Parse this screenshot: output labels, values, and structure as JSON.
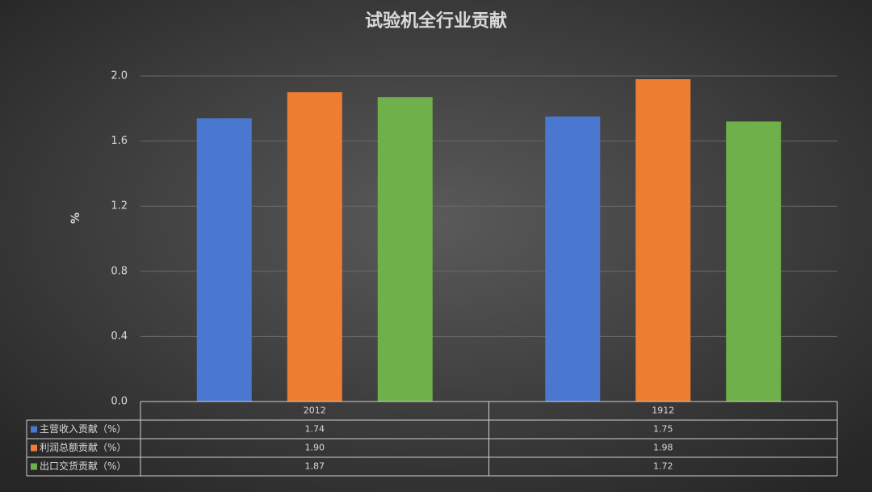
{
  "chart_data": {
    "type": "bar",
    "title": "试验机全行业贡献",
    "y_label": "%",
    "categories": [
      "2012",
      "1912"
    ],
    "series": [
      {
        "name": "主营收入贡献（%）",
        "color": "#4a78d0",
        "values": [
          1.74,
          1.75
        ]
      },
      {
        "name": "利润总额贡献（%）",
        "color": "#ed7d31",
        "values": [
          1.9,
          1.98
        ],
        "value_labels": [
          "1.90",
          "1.98"
        ]
      },
      {
        "name": "出口交货贡献（%）",
        "color": "#70b04a",
        "values": [
          1.87,
          1.72
        ]
      }
    ],
    "ylim": [
      0,
      2
    ],
    "yticks": [
      {
        "value": 0,
        "label": "0.0"
      },
      0.4,
      0.8,
      1.2,
      1.6,
      {
        "value": 2,
        "label": "2.0"
      }
    ],
    "grid": true,
    "data_table": true
  }
}
